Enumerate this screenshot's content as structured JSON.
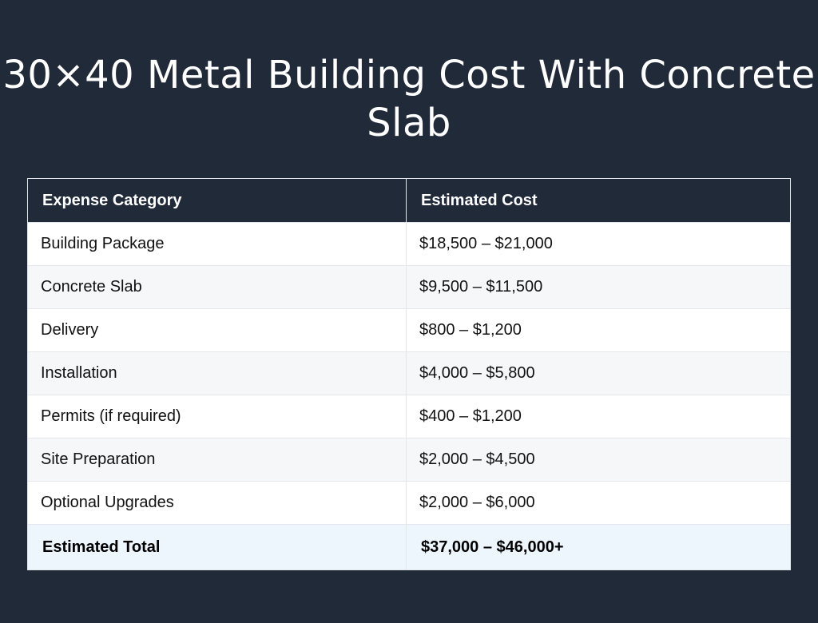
{
  "title": "30×40 Metal Building Cost With Concrete Slab",
  "table": {
    "headers": [
      "Expense Category",
      "Estimated Cost"
    ],
    "rows": [
      {
        "category": "Building Package",
        "cost": "$18,500 – $21,000"
      },
      {
        "category": "Concrete Slab",
        "cost": "$9,500 – $11,500"
      },
      {
        "category": "Delivery",
        "cost": "$800 – $1,200"
      },
      {
        "category": "Installation",
        "cost": "$4,000 – $5,800"
      },
      {
        "category": "Permits (if required)",
        "cost": "$400 – $1,200"
      },
      {
        "category": "Site Preparation",
        "cost": "$2,000 – $4,500"
      },
      {
        "category": "Optional Upgrades",
        "cost": "$2,000 – $6,000"
      }
    ],
    "total": {
      "category": "Estimated Total",
      "cost": "$37,000 – $46,000+"
    }
  },
  "colors": {
    "background": "#212a39",
    "header_background": "#212a39",
    "alt_row": "#f6f7f9",
    "total_row": "#eef6fd"
  }
}
